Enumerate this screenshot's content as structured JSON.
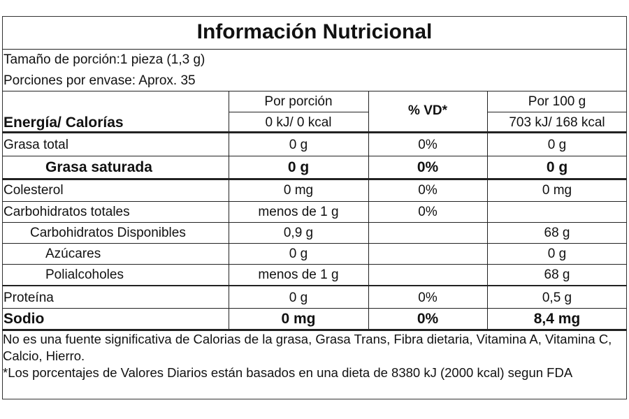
{
  "title": "Información Nutricional",
  "serving": [
    "Tamaño de porción:1 pieza (1,3 g)",
    "Porciones por envase:  Aprox. 35"
  ],
  "header": {
    "label": "Energía/ Calorías",
    "per_portion": "Por porción",
    "vd": "% VD*",
    "per_100g": "Por 100 g",
    "energy_portion": "0 kJ/ 0 kcal",
    "energy_100g": "703 kJ/ 168 kcal"
  },
  "rows": [
    [
      "Grasa total",
      "0 g",
      "0%",
      "0 g"
    ],
    [
      "Grasa saturada",
      "0 g",
      "0%",
      "0 g"
    ],
    [
      "Colesterol",
      "0 mg",
      "0%",
      "0 mg"
    ],
    [
      "Carbohidratos totales",
      "menos de 1 g",
      "0%",
      null
    ],
    [
      "Carbohidratos Disponibles",
      "0,9 g",
      null,
      "68 g"
    ],
    [
      "Azúcares",
      "0 g",
      null,
      "0 g"
    ],
    [
      "Polialcoholes",
      "menos de 1 g",
      null,
      "68 g"
    ],
    [
      "Proteína",
      "0 g",
      "0%",
      "0,5 g"
    ],
    [
      "Sodio",
      "0 mg",
      "0%",
      "8,4 mg"
    ]
  ],
  "footnotes": [
    "No es una fuente significativa de Calorias de la grasa, Grasa Trans, Fibra dietaria, Vitamina A, Vitamina C, Calcio, Hierro.",
    "*Los porcentajes de Valores Diarios están basados en una dieta de 8380 kJ (2000 kcal) segun FDA"
  ]
}
